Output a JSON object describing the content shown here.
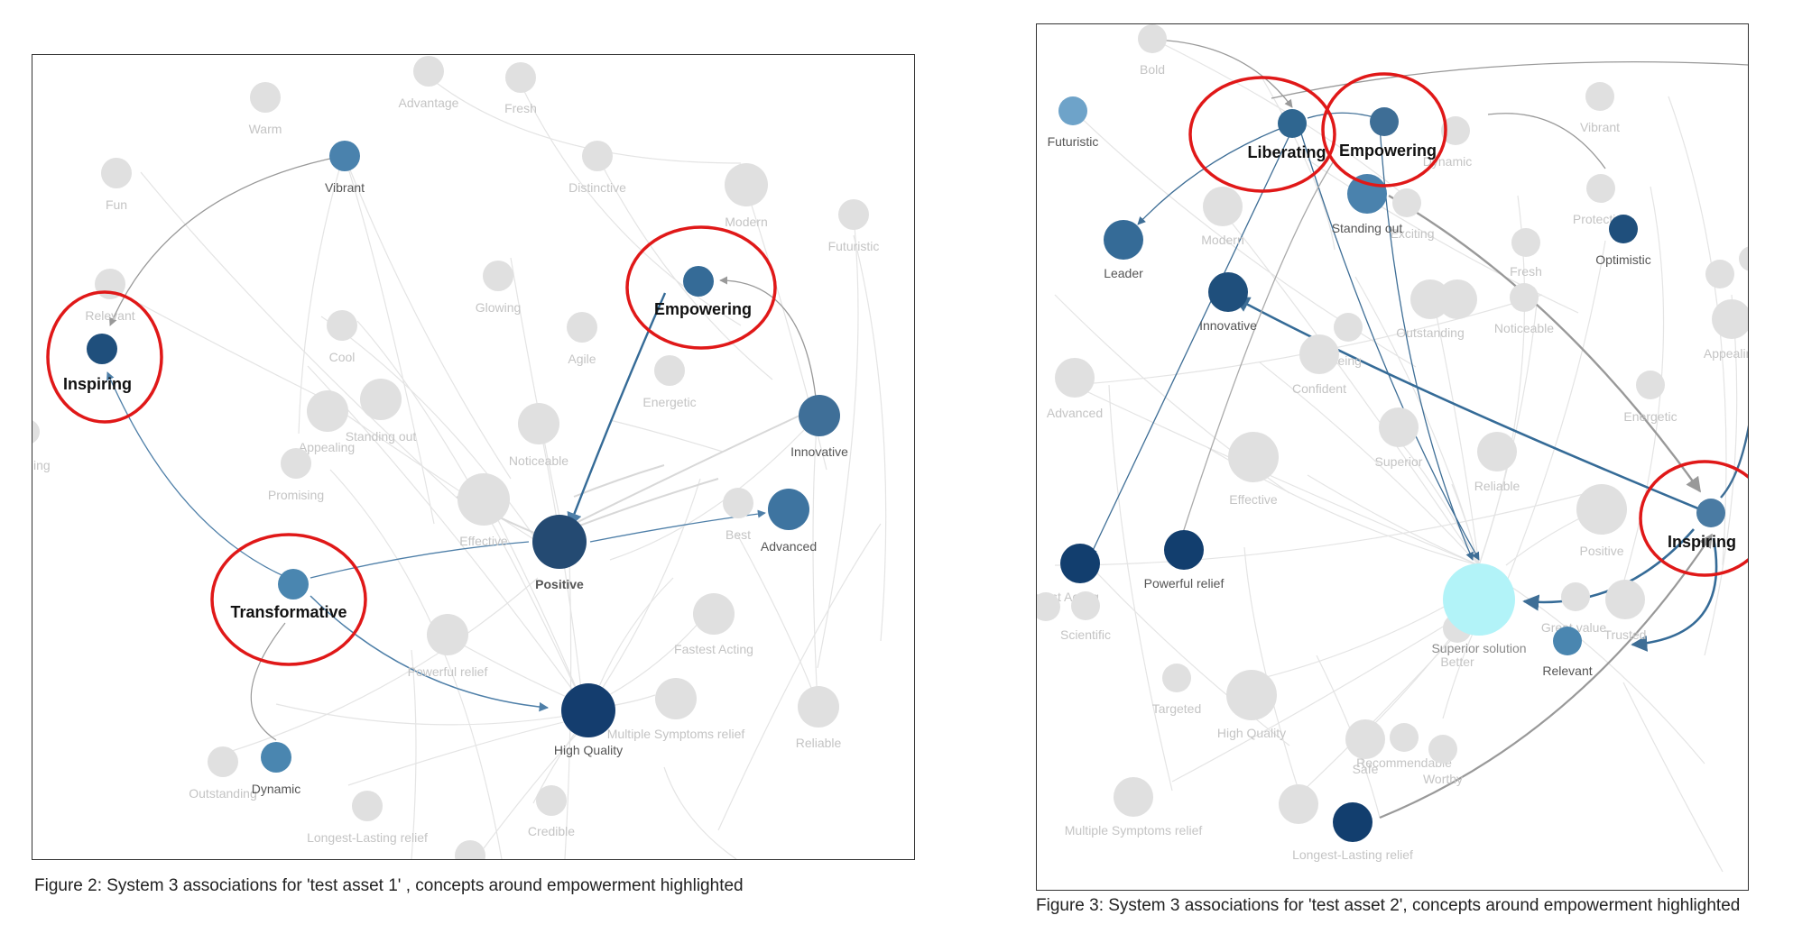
{
  "figures": [
    {
      "caption": "Figure 2: System 3 associations for 'test asset 1' , concepts around empowerment highlighted",
      "nodes": [
        {
          "label": "Warm",
          "role": "gray"
        },
        {
          "label": "Advantage",
          "role": "gray"
        },
        {
          "label": "Fresh",
          "role": "gray"
        },
        {
          "label": "Fun",
          "role": "gray"
        },
        {
          "label": "Vibrant",
          "role": "dark",
          "color": "#4a82ad"
        },
        {
          "label": "Distinctive",
          "role": "gray"
        },
        {
          "label": "Modern",
          "role": "gray"
        },
        {
          "label": "Futuristic",
          "role": "gray"
        },
        {
          "label": "Relevant",
          "role": "gray"
        },
        {
          "label": "Glowing",
          "role": "gray"
        },
        {
          "label": "Cool",
          "role": "gray"
        },
        {
          "label": "Agile",
          "role": "gray"
        },
        {
          "label": "Energetic",
          "role": "gray"
        },
        {
          "label": "Standing out",
          "role": "gray"
        },
        {
          "label": "Appealing",
          "role": "gray"
        },
        {
          "label": "Promising",
          "role": "gray"
        },
        {
          "label": "Noticeable",
          "role": "gray"
        },
        {
          "label": "Effective",
          "role": "gray"
        },
        {
          "label": "Best",
          "role": "gray"
        },
        {
          "label": "Advanced",
          "role": "dark",
          "color": "#3e74a0"
        },
        {
          "label": "Positive",
          "role": "dark",
          "color": "#244a72"
        },
        {
          "label": "Innovative",
          "role": "dark",
          "color": "#3f6f98"
        },
        {
          "label": "Powerful relief",
          "role": "gray"
        },
        {
          "label": "Fastest Acting",
          "role": "gray"
        },
        {
          "label": "Multiple Symptoms relief",
          "role": "gray"
        },
        {
          "label": "Reliable",
          "role": "gray"
        },
        {
          "label": "High Quality",
          "role": "dark",
          "color": "#143d6e"
        },
        {
          "label": "Outstanding",
          "role": "gray"
        },
        {
          "label": "Dynamic",
          "role": "dark",
          "color": "#4a86b0"
        },
        {
          "label": "Longest-Lasting relief",
          "role": "gray"
        },
        {
          "label": "Credible",
          "role": "gray"
        },
        {
          "label": "ing",
          "role": "gray"
        },
        {
          "label": "Inspiring",
          "role": "highlight",
          "color": "#1f4f7c"
        },
        {
          "label": "Transformative",
          "role": "highlight",
          "color": "#4a86b0"
        },
        {
          "label": "Empowering",
          "role": "highlight",
          "color": "#356b97"
        }
      ]
    },
    {
      "caption": "Figure 3: System 3 associations for 'test asset 2', concepts around empowerment highlighted",
      "nodes": [
        {
          "label": "Bold",
          "role": "gray"
        },
        {
          "label": "Futuristic",
          "role": "dark",
          "color": "#6ea3c9"
        },
        {
          "label": "Vibrant",
          "role": "gray"
        },
        {
          "label": "Dynamic",
          "role": "gray"
        },
        {
          "label": "Leader",
          "role": "dark",
          "color": "#356b97"
        },
        {
          "label": "Modern",
          "role": "gray"
        },
        {
          "label": "Standing out",
          "role": "dark",
          "color": "#4a82ad"
        },
        {
          "label": "Exciting",
          "role": "gray"
        },
        {
          "label": "Protective",
          "role": "gray"
        },
        {
          "label": "Optimistic",
          "role": "dark",
          "color": "#1f4f7c"
        },
        {
          "label": "Fresh",
          "role": "gray"
        },
        {
          "label": "Innovative",
          "role": "dark",
          "color": "#1f4f7c"
        },
        {
          "label": "Noticeable",
          "role": "gray"
        },
        {
          "label": "Appealing",
          "role": "gray"
        },
        {
          "label": "Outstanding",
          "role": "gray"
        },
        {
          "label": "Well-being",
          "role": "gray"
        },
        {
          "label": "Confident",
          "role": "gray"
        },
        {
          "label": "Advanced",
          "role": "gray"
        },
        {
          "label": "Energetic",
          "role": "gray"
        },
        {
          "label": "Superior",
          "role": "gray"
        },
        {
          "label": "Effective",
          "role": "gray"
        },
        {
          "label": "Reliable",
          "role": "gray"
        },
        {
          "label": "Positive",
          "role": "gray"
        },
        {
          "label": "Fastest Acting",
          "role": "dark",
          "color": "#123e6e"
        },
        {
          "label": "Powerful relief",
          "role": "dark",
          "color": "#123e6e"
        },
        {
          "label": "Scientific",
          "role": "gray"
        },
        {
          "label": "Superior solution",
          "role": "special",
          "color": "#b2f3f8"
        },
        {
          "label": "Better",
          "role": "gray"
        },
        {
          "label": "Great value",
          "role": "gray"
        },
        {
          "label": "Trusted",
          "role": "gray"
        },
        {
          "label": "Relevant",
          "role": "dark",
          "color": "#4a86b0"
        },
        {
          "label": "Targeted",
          "role": "gray"
        },
        {
          "label": "High Quality",
          "role": "gray"
        },
        {
          "label": "Safe",
          "role": "gray"
        },
        {
          "label": "Recommendable",
          "role": "gray"
        },
        {
          "label": "Worthy",
          "role": "gray"
        },
        {
          "label": "Multiple Symptoms relief",
          "role": "gray"
        },
        {
          "label": "Longest-Lasting relief",
          "role": "dark",
          "color": "#123e6e"
        },
        {
          "label": "Liberating",
          "role": "highlight",
          "color": "#2f6690"
        },
        {
          "label": "Empowering",
          "role": "highlight",
          "color": "#3e6e96"
        },
        {
          "label": "Inspiring",
          "role": "highlight",
          "color": "#4a7ba3"
        }
      ]
    }
  ]
}
